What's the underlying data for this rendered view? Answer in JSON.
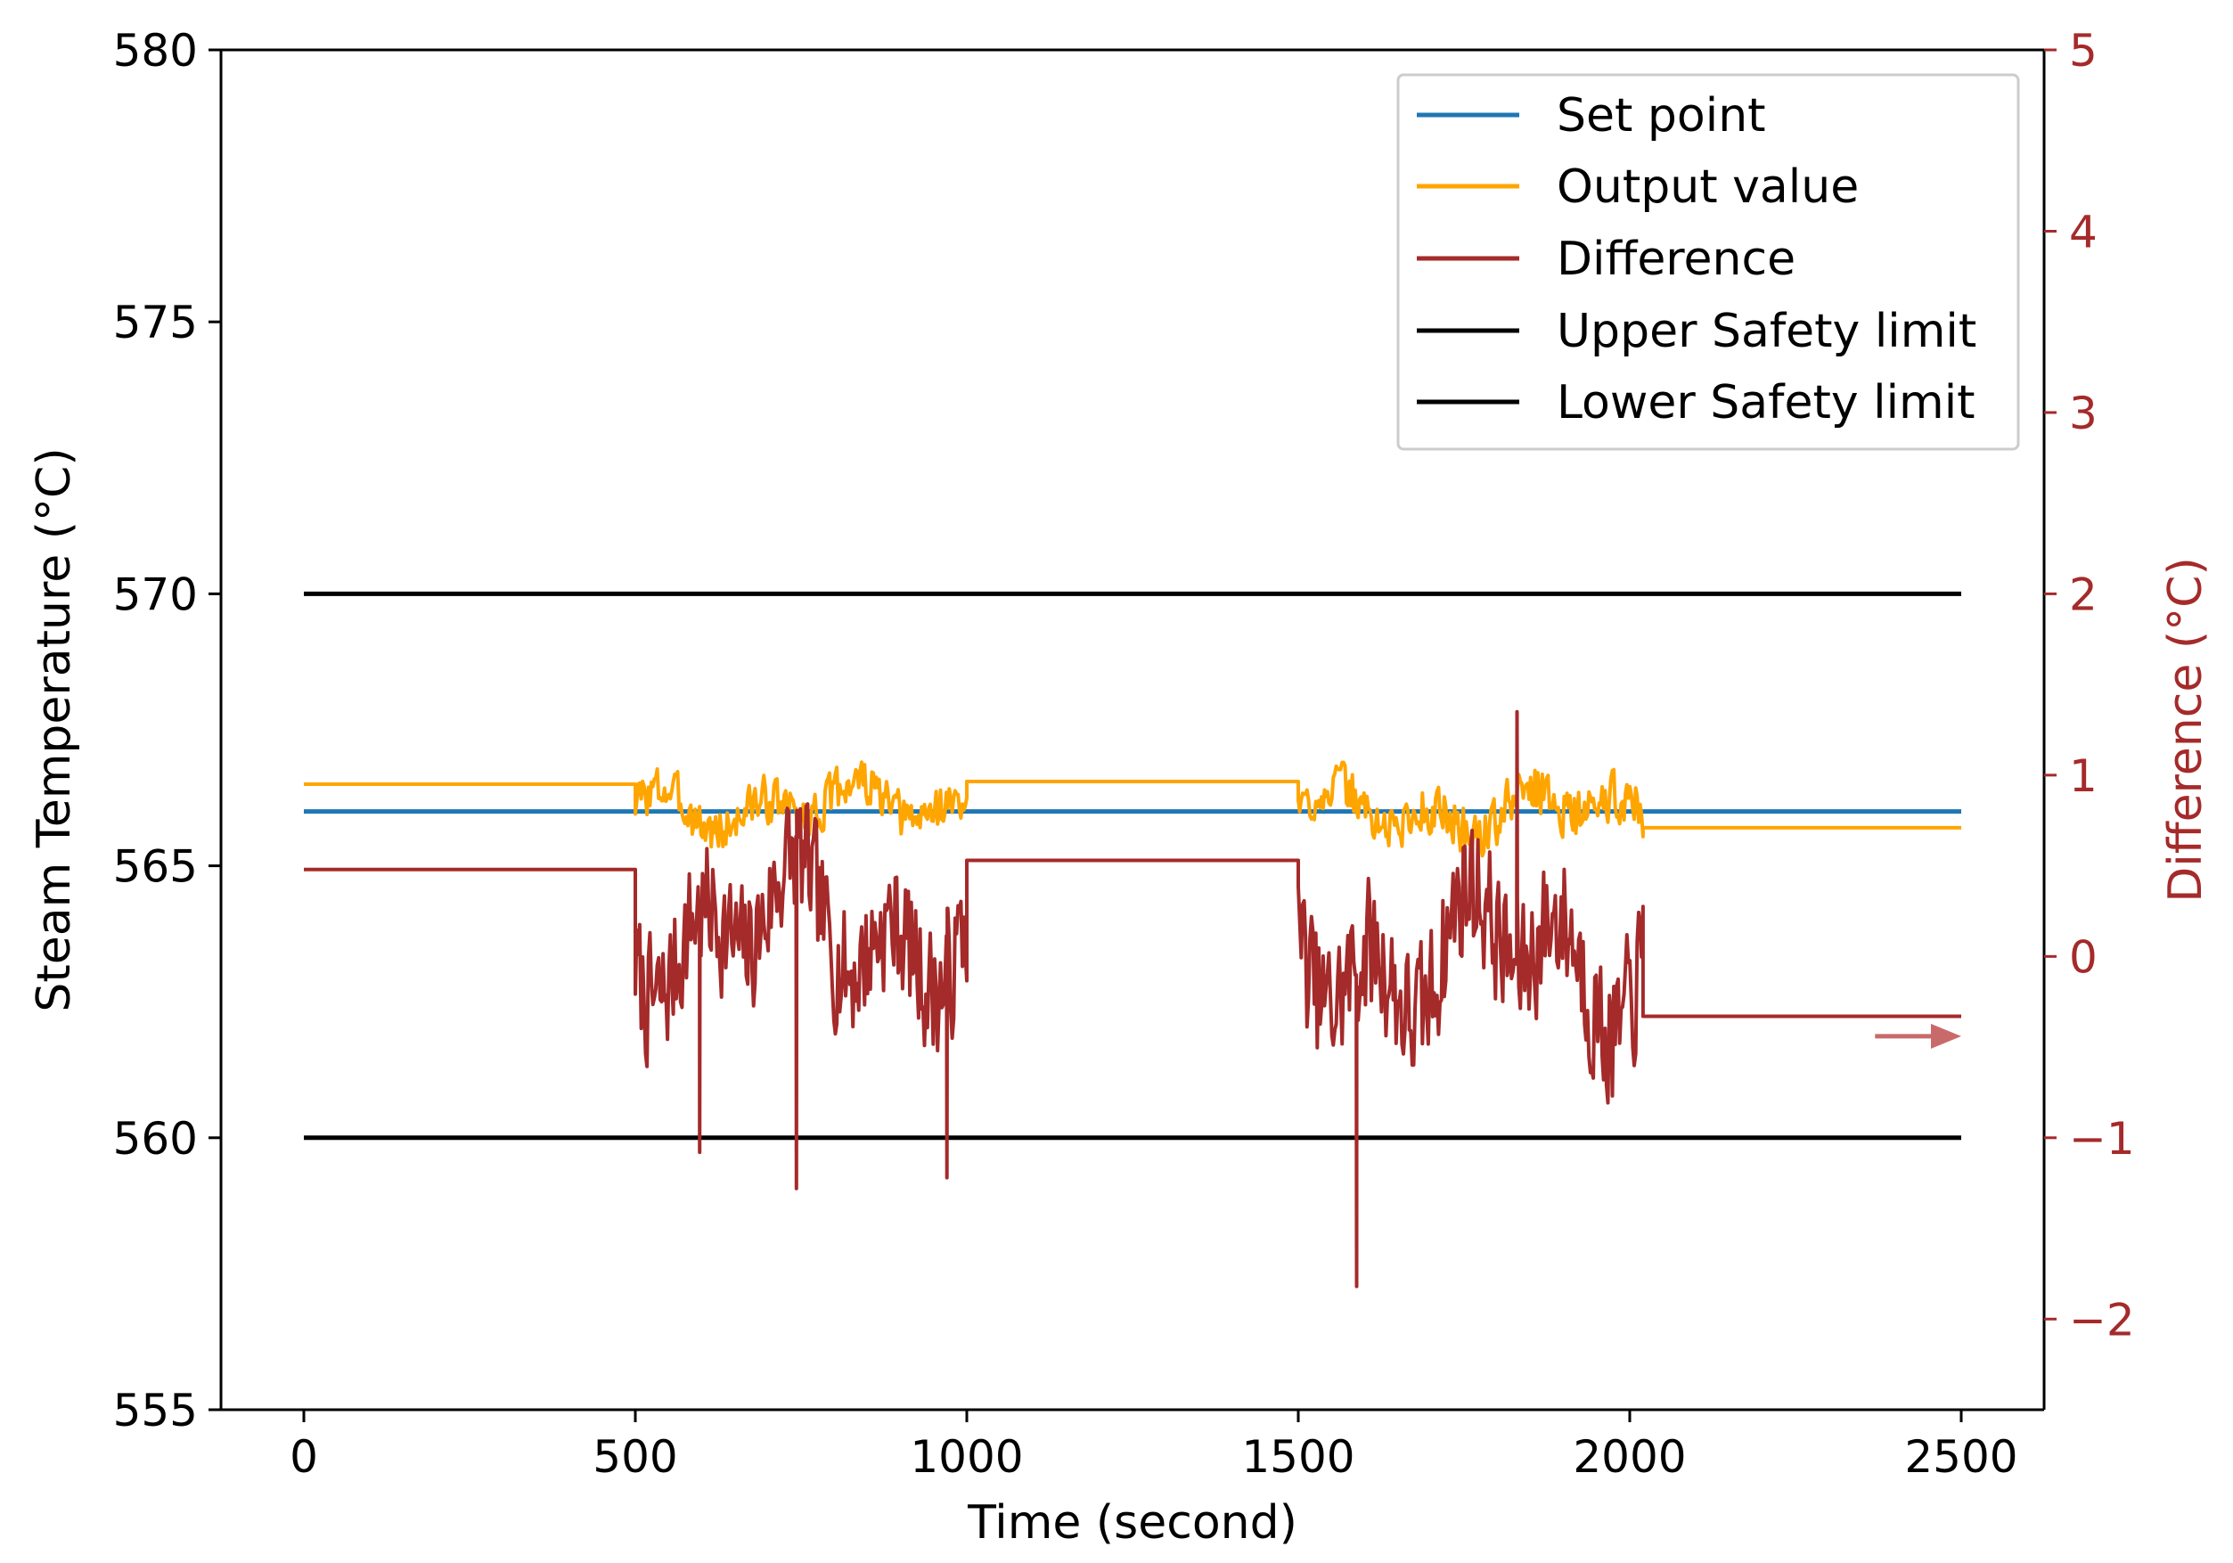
{
  "chart_data": {
    "type": "line",
    "title": "",
    "xlabel": "Time (second)",
    "ylabel": "Steam Temperature ($^\\circ$C)",
    "ylabel_display": "Steam Temperature (°C)",
    "y2label": "Difference ($^\\circ$C)",
    "y2label_display": "Difference (°C)",
    "xlim": [
      -125,
      2625
    ],
    "ylim": [
      555,
      580
    ],
    "y2lim": [
      -2.5,
      5
    ],
    "xticks": [
      0,
      500,
      1000,
      1500,
      2000,
      2500
    ],
    "xtick_labels": [
      "0",
      "500",
      "1000",
      "1500",
      "2000",
      "2500"
    ],
    "yticks": [
      555,
      560,
      565,
      570,
      575,
      580
    ],
    "ytick_labels": [
      "555",
      "560",
      "565",
      "570",
      "575",
      "580"
    ],
    "y2ticks": [
      -2,
      -1,
      0,
      1,
      2,
      3,
      4,
      5
    ],
    "y2tick_labels": [
      "−2",
      "−1",
      "0",
      "1",
      "2",
      "3",
      "4",
      "5"
    ],
    "grid": false,
    "legend_position": "top-right",
    "colors": {
      "set_point": "#1f77b4",
      "output": "#ffa500",
      "difference": "#a52a2a",
      "limit": "#000000",
      "arrow": "#c96a6a",
      "axis": "#000000"
    },
    "annotations": [
      {
        "type": "arrow",
        "description": "arrow pointing right toward secondary axis",
        "x_start": 2370,
        "x_end": 2500,
        "y2": -0.44
      }
    ],
    "series": [
      {
        "name": "Set point",
        "axis": "left",
        "color": "#1f77b4",
        "x": [
          0,
          2500
        ],
        "y": [
          566.0,
          566.0
        ]
      },
      {
        "name": "Output value",
        "axis": "left",
        "color": "#ffa500",
        "steady": [
          {
            "x": [
              0,
              500
            ],
            "y": 566.5
          },
          {
            "x": [
              1000,
              1500
            ],
            "y": 566.55
          },
          {
            "x": [
              2020,
              2500
            ],
            "y": 565.7
          }
        ],
        "noisy": [
          {
            "x": [
              500,
              1000
            ],
            "mean": 566.1,
            "amp": 0.75,
            "min": 564.9,
            "max": 567.1
          },
          {
            "x": [
              1500,
              2020
            ],
            "mean": 566.0,
            "amp": 0.8,
            "min": 564.3,
            "max": 566.9
          }
        ]
      },
      {
        "name": "Difference",
        "axis": "right",
        "color": "#a52a2a",
        "steady": [
          {
            "x": [
              0,
              500
            ],
            "y": 0.48
          },
          {
            "x": [
              1000,
              1500
            ],
            "y": 0.53
          },
          {
            "x": [
              2020,
              2500
            ],
            "y": -0.33
          }
        ],
        "noisy": [
          {
            "x": [
              500,
              1000
            ],
            "mean": 0.15,
            "amp": 0.65,
            "min": -1.3,
            "max": 1.05
          },
          {
            "x": [
              1500,
              2020
            ],
            "mean": 0.0,
            "amp": 0.7,
            "min": -1.82,
            "max": 1.35
          }
        ],
        "extremes": [
          {
            "x": 597,
            "y": -1.08
          },
          {
            "x": 743,
            "y": -1.28
          },
          {
            "x": 970,
            "y": -1.22
          },
          {
            "x": 1588,
            "y": -1.82
          },
          {
            "x": 1830,
            "y": 1.35
          }
        ]
      },
      {
        "name": "Upper Safety limit",
        "axis": "left",
        "color": "#000000",
        "x": [
          0,
          2500
        ],
        "y": [
          570.0,
          570.0
        ]
      },
      {
        "name": "Lower Safety limit",
        "axis": "left",
        "color": "#000000",
        "x": [
          0,
          2500
        ],
        "y": [
          560.0,
          560.0
        ]
      }
    ]
  }
}
